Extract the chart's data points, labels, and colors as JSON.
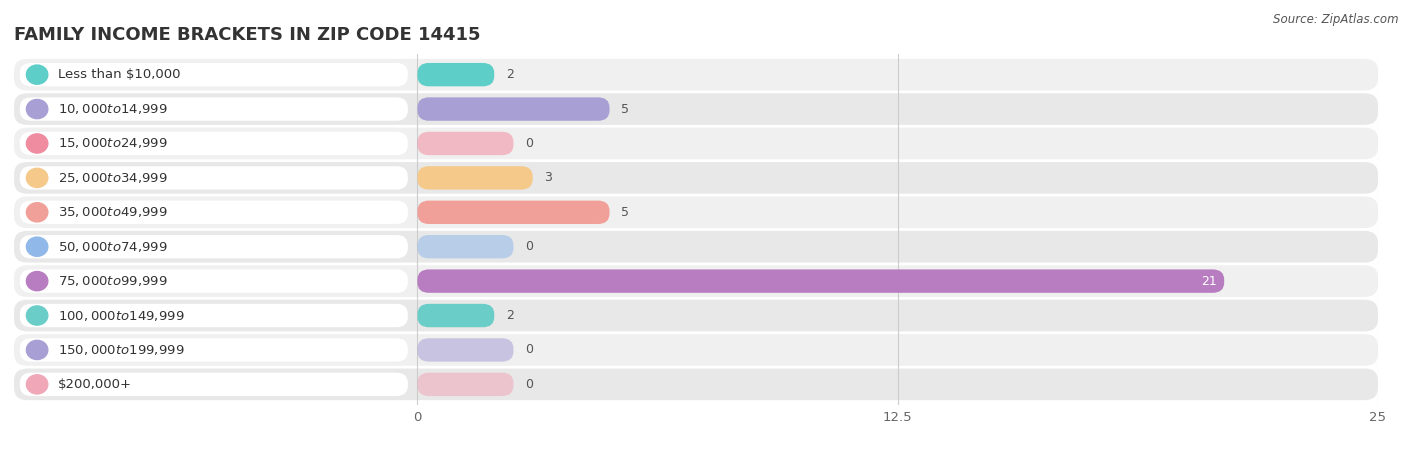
{
  "title": "FAMILY INCOME BRACKETS IN ZIP CODE 14415",
  "source": "Source: ZipAtlas.com",
  "categories": [
    "Less than $10,000",
    "$10,000 to $14,999",
    "$15,000 to $24,999",
    "$25,000 to $34,999",
    "$35,000 to $49,999",
    "$50,000 to $74,999",
    "$75,000 to $99,999",
    "$100,000 to $149,999",
    "$150,000 to $199,999",
    "$200,000+"
  ],
  "values": [
    2,
    5,
    0,
    3,
    5,
    0,
    21,
    2,
    0,
    0
  ],
  "bar_colors": [
    "#5ecec8",
    "#a89fd4",
    "#f08ca0",
    "#f5c98a",
    "#f0a098",
    "#90b8e8",
    "#b87cc0",
    "#6bcdc8",
    "#a89fd4",
    "#f0a8b8"
  ],
  "row_bg_colors": [
    "#f0f0f0",
    "#e8e8e8"
  ],
  "xlim": [
    0,
    25
  ],
  "xticks": [
    0,
    12.5,
    25
  ],
  "background_color": "#ffffff",
  "title_fontsize": 13,
  "label_fontsize": 9.5,
  "value_fontsize": 9
}
